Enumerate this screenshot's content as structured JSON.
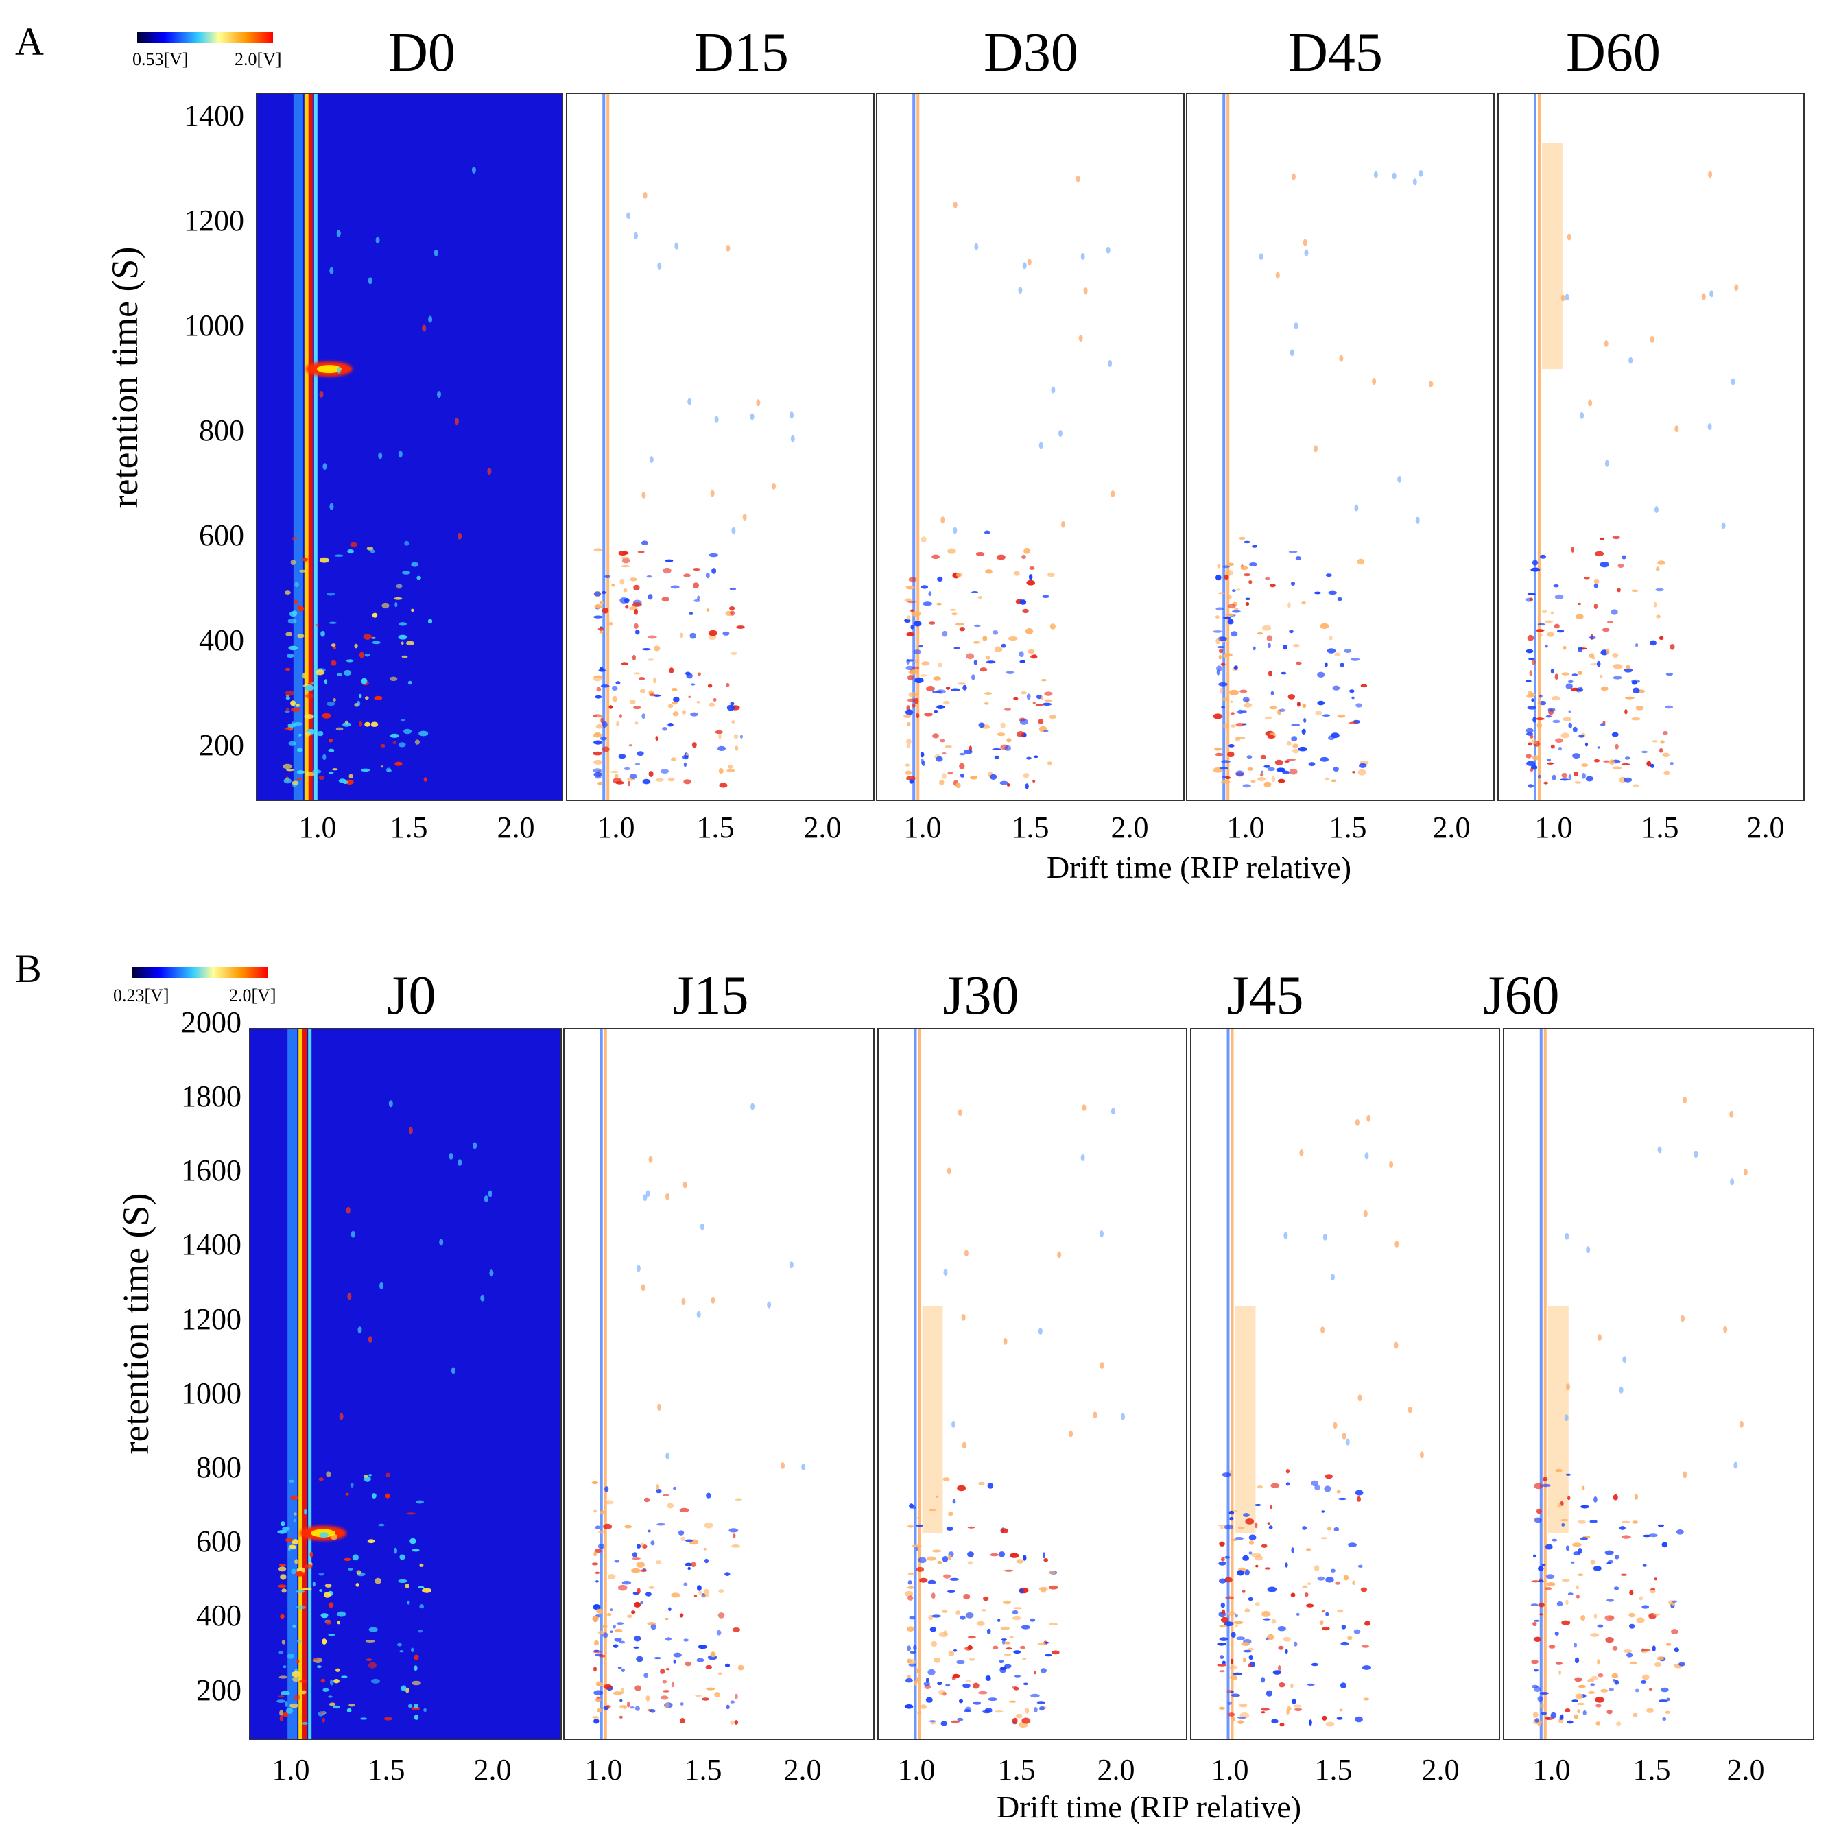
{
  "figure": {
    "x_axis_label": "Drift time (RIP relative)",
    "y_axis_label": "retention time (S)"
  },
  "chart_data": [
    {
      "type": "heatmap",
      "panel_letter": "A",
      "colorbar": {
        "min_label": "0.53[V]",
        "max_label": "2.0[V]",
        "colors": [
          "#000033",
          "#0000ff",
          "#33ccff",
          "#ffff99",
          "#ff9900",
          "#ff0000"
        ]
      },
      "ylabel": "retention time (S)",
      "xlabel": "Drift time (RIP relative)",
      "ylim": [
        100,
        1450
      ],
      "yticks": [
        200,
        400,
        600,
        800,
        1000,
        1200,
        1400
      ],
      "ytick_labels": [
        "200",
        "400",
        "600",
        "800",
        "1000",
        "1200",
        "1400"
      ],
      "subplots": [
        {
          "title": "D0",
          "mode": "topographic",
          "xlim": [
            0.7,
            2.25
          ],
          "xticks": [
            1.0,
            1.5,
            2.0
          ],
          "xtick_labels": [
            "1.0",
            "1.5",
            "2.0"
          ]
        },
        {
          "title": "D15",
          "mode": "difference",
          "xlim": [
            0.75,
            2.3
          ],
          "xticks": [
            1.0,
            1.5,
            2.0
          ],
          "xtick_labels": [
            "1.0",
            "1.5",
            "2.0"
          ]
        },
        {
          "title": "D30",
          "mode": "difference",
          "xlim": [
            0.75,
            2.3
          ],
          "xticks": [
            1.0,
            1.5,
            2.0
          ],
          "xtick_labels": [
            "1.0",
            "1.5",
            "2.0"
          ]
        },
        {
          "title": "D45",
          "mode": "difference",
          "xlim": [
            0.75,
            2.3
          ],
          "xticks": [
            1.0,
            1.5,
            2.0
          ],
          "xtick_labels": [
            "1.0",
            "1.5",
            "2.0"
          ]
        },
        {
          "title": "D60",
          "mode": "difference",
          "xlim": [
            0.75,
            2.3
          ],
          "xticks": [
            1.0,
            1.5,
            2.0
          ],
          "xtick_labels": [
            "1.0",
            "1.5",
            "2.0"
          ]
        }
      ]
    },
    {
      "type": "heatmap",
      "panel_letter": "B",
      "colorbar": {
        "min_label": "0.23[V]",
        "max_label": "2.0[V]",
        "colors": [
          "#000033",
          "#0000ff",
          "#33ccff",
          "#ffff99",
          "#ff9900",
          "#ff0000"
        ]
      },
      "ylabel": "retention time (S)",
      "xlabel": "Drift time (RIP relative)",
      "ylim": [
        60,
        2000
      ],
      "yticks": [
        200,
        400,
        600,
        800,
        1000,
        1200,
        1400,
        1600,
        1800,
        2000
      ],
      "ytick_labels": [
        "200",
        "400",
        "600",
        "800",
        "1000",
        "1200",
        "1400",
        "1600",
        "1800",
        "2000"
      ],
      "subplots": [
        {
          "title": "J0",
          "mode": "topographic",
          "xlim": [
            0.8,
            2.3
          ],
          "xticks": [
            1.0,
            1.5,
            2.0
          ],
          "xtick_labels": [
            "1.0",
            "1.5",
            "2.0"
          ]
        },
        {
          "title": "J15",
          "mode": "difference",
          "xlim": [
            0.8,
            2.35
          ],
          "xticks": [
            1.0,
            1.5,
            2.0
          ],
          "xtick_labels": [
            "1.0",
            "1.5",
            "2.0"
          ]
        },
        {
          "title": "J30",
          "mode": "difference",
          "xlim": [
            0.8,
            2.35
          ],
          "xticks": [
            1.0,
            1.5,
            2.0
          ],
          "xtick_labels": [
            "1.0",
            "1.5",
            "2.0"
          ]
        },
        {
          "title": "J45",
          "mode": "difference",
          "xlim": [
            0.8,
            2.35
          ],
          "xticks": [
            1.0,
            1.5,
            2.0
          ],
          "xtick_labels": [
            "1.0",
            "1.5",
            "2.0"
          ]
        },
        {
          "title": "J60",
          "mode": "difference",
          "xlim": [
            0.8,
            2.35
          ],
          "xticks": [
            1.0,
            1.5,
            2.0
          ],
          "xtick_labels": [
            "1.0",
            "1.5",
            "2.0"
          ]
        }
      ]
    }
  ]
}
